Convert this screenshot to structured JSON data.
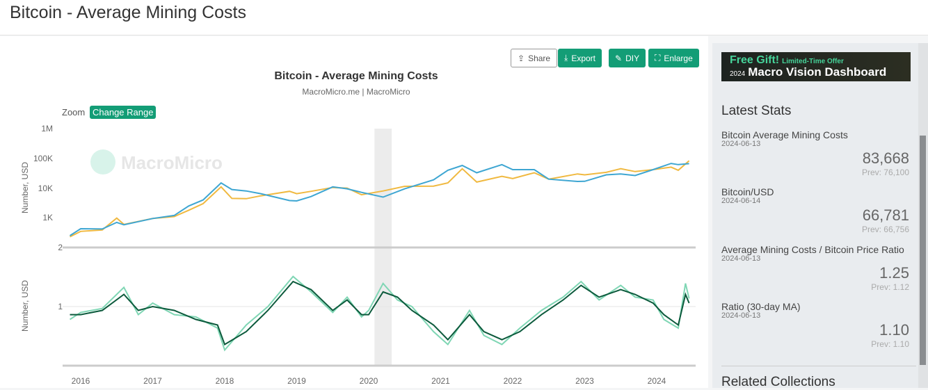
{
  "page": {
    "title": "Bitcoin - Average Mining Costs"
  },
  "toolbar": {
    "share": "Share",
    "export": "Export",
    "diy": "DIY",
    "enlarge": "Enlarge"
  },
  "chart_controls": {
    "zoom_label": "Zoom",
    "change_range": "Change Range"
  },
  "watermark": "MacroMicro",
  "chart_data": {
    "type": "line",
    "title": "Bitcoin - Average Mining Costs",
    "subtitle": "MacroMicro.me | MacroMicro",
    "colors": {
      "mining_cost": "#f0b940",
      "btc_usd": "#3ea6d2",
      "ratio": "#7fd6b4",
      "ratio_ma": "#0c5a3c"
    },
    "x_ticks": [
      "2016",
      "2017",
      "2018",
      "2019",
      "2020",
      "2021",
      "2022",
      "2023",
      "2024"
    ],
    "highlight_range": [
      2020.08,
      2020.32
    ],
    "top": {
      "ylabel": "Number, USD",
      "scale": "log",
      "y_ticks": [
        "1M",
        "100K",
        "10K",
        "1K",
        "2"
      ],
      "x": [
        2015.85,
        2016.0,
        2016.3,
        2016.5,
        2016.6,
        2017.0,
        2017.3,
        2017.5,
        2017.7,
        2017.95,
        2018.1,
        2018.3,
        2018.5,
        2018.9,
        2019.0,
        2019.2,
        2019.5,
        2019.7,
        2019.9,
        2020.2,
        2020.5,
        2020.9,
        2021.1,
        2021.3,
        2021.5,
        2021.85,
        2022.0,
        2022.3,
        2022.5,
        2022.9,
        2023.0,
        2023.3,
        2023.5,
        2023.7,
        2023.95,
        2024.2,
        2024.3,
        2024.45
      ],
      "btc_usd": [
        250,
        430,
        420,
        700,
        580,
        950,
        1200,
        2500,
        4000,
        15000,
        9000,
        8000,
        6500,
        3800,
        3700,
        5200,
        11000,
        9500,
        7200,
        5000,
        9500,
        19000,
        40000,
        58000,
        33000,
        62000,
        42000,
        42000,
        20000,
        16800,
        17000,
        28000,
        30000,
        26500,
        42000,
        68000,
        62000,
        66781
      ],
      "mining_cost": [
        230,
        350,
        390,
        980,
        600,
        950,
        1100,
        1800,
        3000,
        11000,
        4500,
        4400,
        5500,
        7800,
        6500,
        7800,
        10500,
        10000,
        6000,
        8000,
        11500,
        11700,
        15000,
        45000,
        16000,
        25000,
        21000,
        33000,
        20000,
        30000,
        28000,
        34000,
        45000,
        36000,
        42000,
        51000,
        40000,
        83668
      ]
    },
    "bottom": {
      "ylabel": "Number, USD",
      "y_ticks": [
        "1"
      ],
      "x": [
        2015.85,
        2016.0,
        2016.3,
        2016.6,
        2016.8,
        2017.0,
        2017.3,
        2017.6,
        2017.9,
        2018.0,
        2018.3,
        2018.6,
        2018.95,
        2019.2,
        2019.5,
        2019.7,
        2019.9,
        2020.0,
        2020.2,
        2020.4,
        2020.6,
        2020.9,
        2021.1,
        2021.4,
        2021.6,
        2021.85,
        2022.1,
        2022.4,
        2022.7,
        2022.95,
        2023.2,
        2023.5,
        2023.7,
        2023.95,
        2024.1,
        2024.3,
        2024.4,
        2024.45
      ],
      "ratio": [
        0.7,
        0.85,
        0.95,
        1.7,
        0.8,
        1.1,
        0.8,
        0.75,
        0.55,
        0.3,
        0.6,
        1.0,
        2.3,
        1.5,
        0.85,
        1.3,
        0.75,
        0.9,
        1.9,
        1.2,
        1.0,
        0.5,
        0.35,
        0.9,
        0.45,
        0.35,
        0.55,
        0.9,
        1.3,
        2.0,
        1.2,
        1.8,
        1.3,
        1.2,
        0.7,
        0.55,
        1.9,
        1.25
      ],
      "ratio_ma": [
        0.8,
        0.8,
        0.9,
        1.4,
        0.9,
        1.0,
        0.9,
        0.7,
        0.6,
        0.35,
        0.5,
        0.9,
        2.0,
        1.6,
        0.9,
        1.2,
        0.8,
        0.8,
        1.5,
        1.3,
        0.9,
        0.6,
        0.4,
        0.8,
        0.5,
        0.4,
        0.5,
        0.8,
        1.2,
        1.8,
        1.3,
        1.6,
        1.4,
        1.1,
        0.8,
        0.6,
        1.4,
        1.1
      ]
    }
  },
  "sidebar": {
    "banner": {
      "line1": "Free Gift!",
      "line1_small": "Limited-Time Offer",
      "year": "2024",
      "line2": "Macro Vision Dashboard"
    },
    "latest_stats_title": "Latest Stats",
    "stats": [
      {
        "name": "Bitcoin Average Mining Costs",
        "date": "2024-06-13",
        "value": "83,668",
        "prev": "Prev: 76,100"
      },
      {
        "name": "Bitcoin/USD",
        "date": "2024-06-14",
        "value": "66,781",
        "prev": "Prev: 66,756"
      },
      {
        "name": "Average Mining Costs / Bitcoin Price Ratio",
        "date": "2024-06-13",
        "value": "1.25",
        "prev": "Prev: 1.12"
      },
      {
        "name": "Ratio (30-day MA)",
        "date": "2024-06-13",
        "value": "1.10",
        "prev": "Prev: 1.10"
      }
    ],
    "related_title": "Related Collections"
  }
}
